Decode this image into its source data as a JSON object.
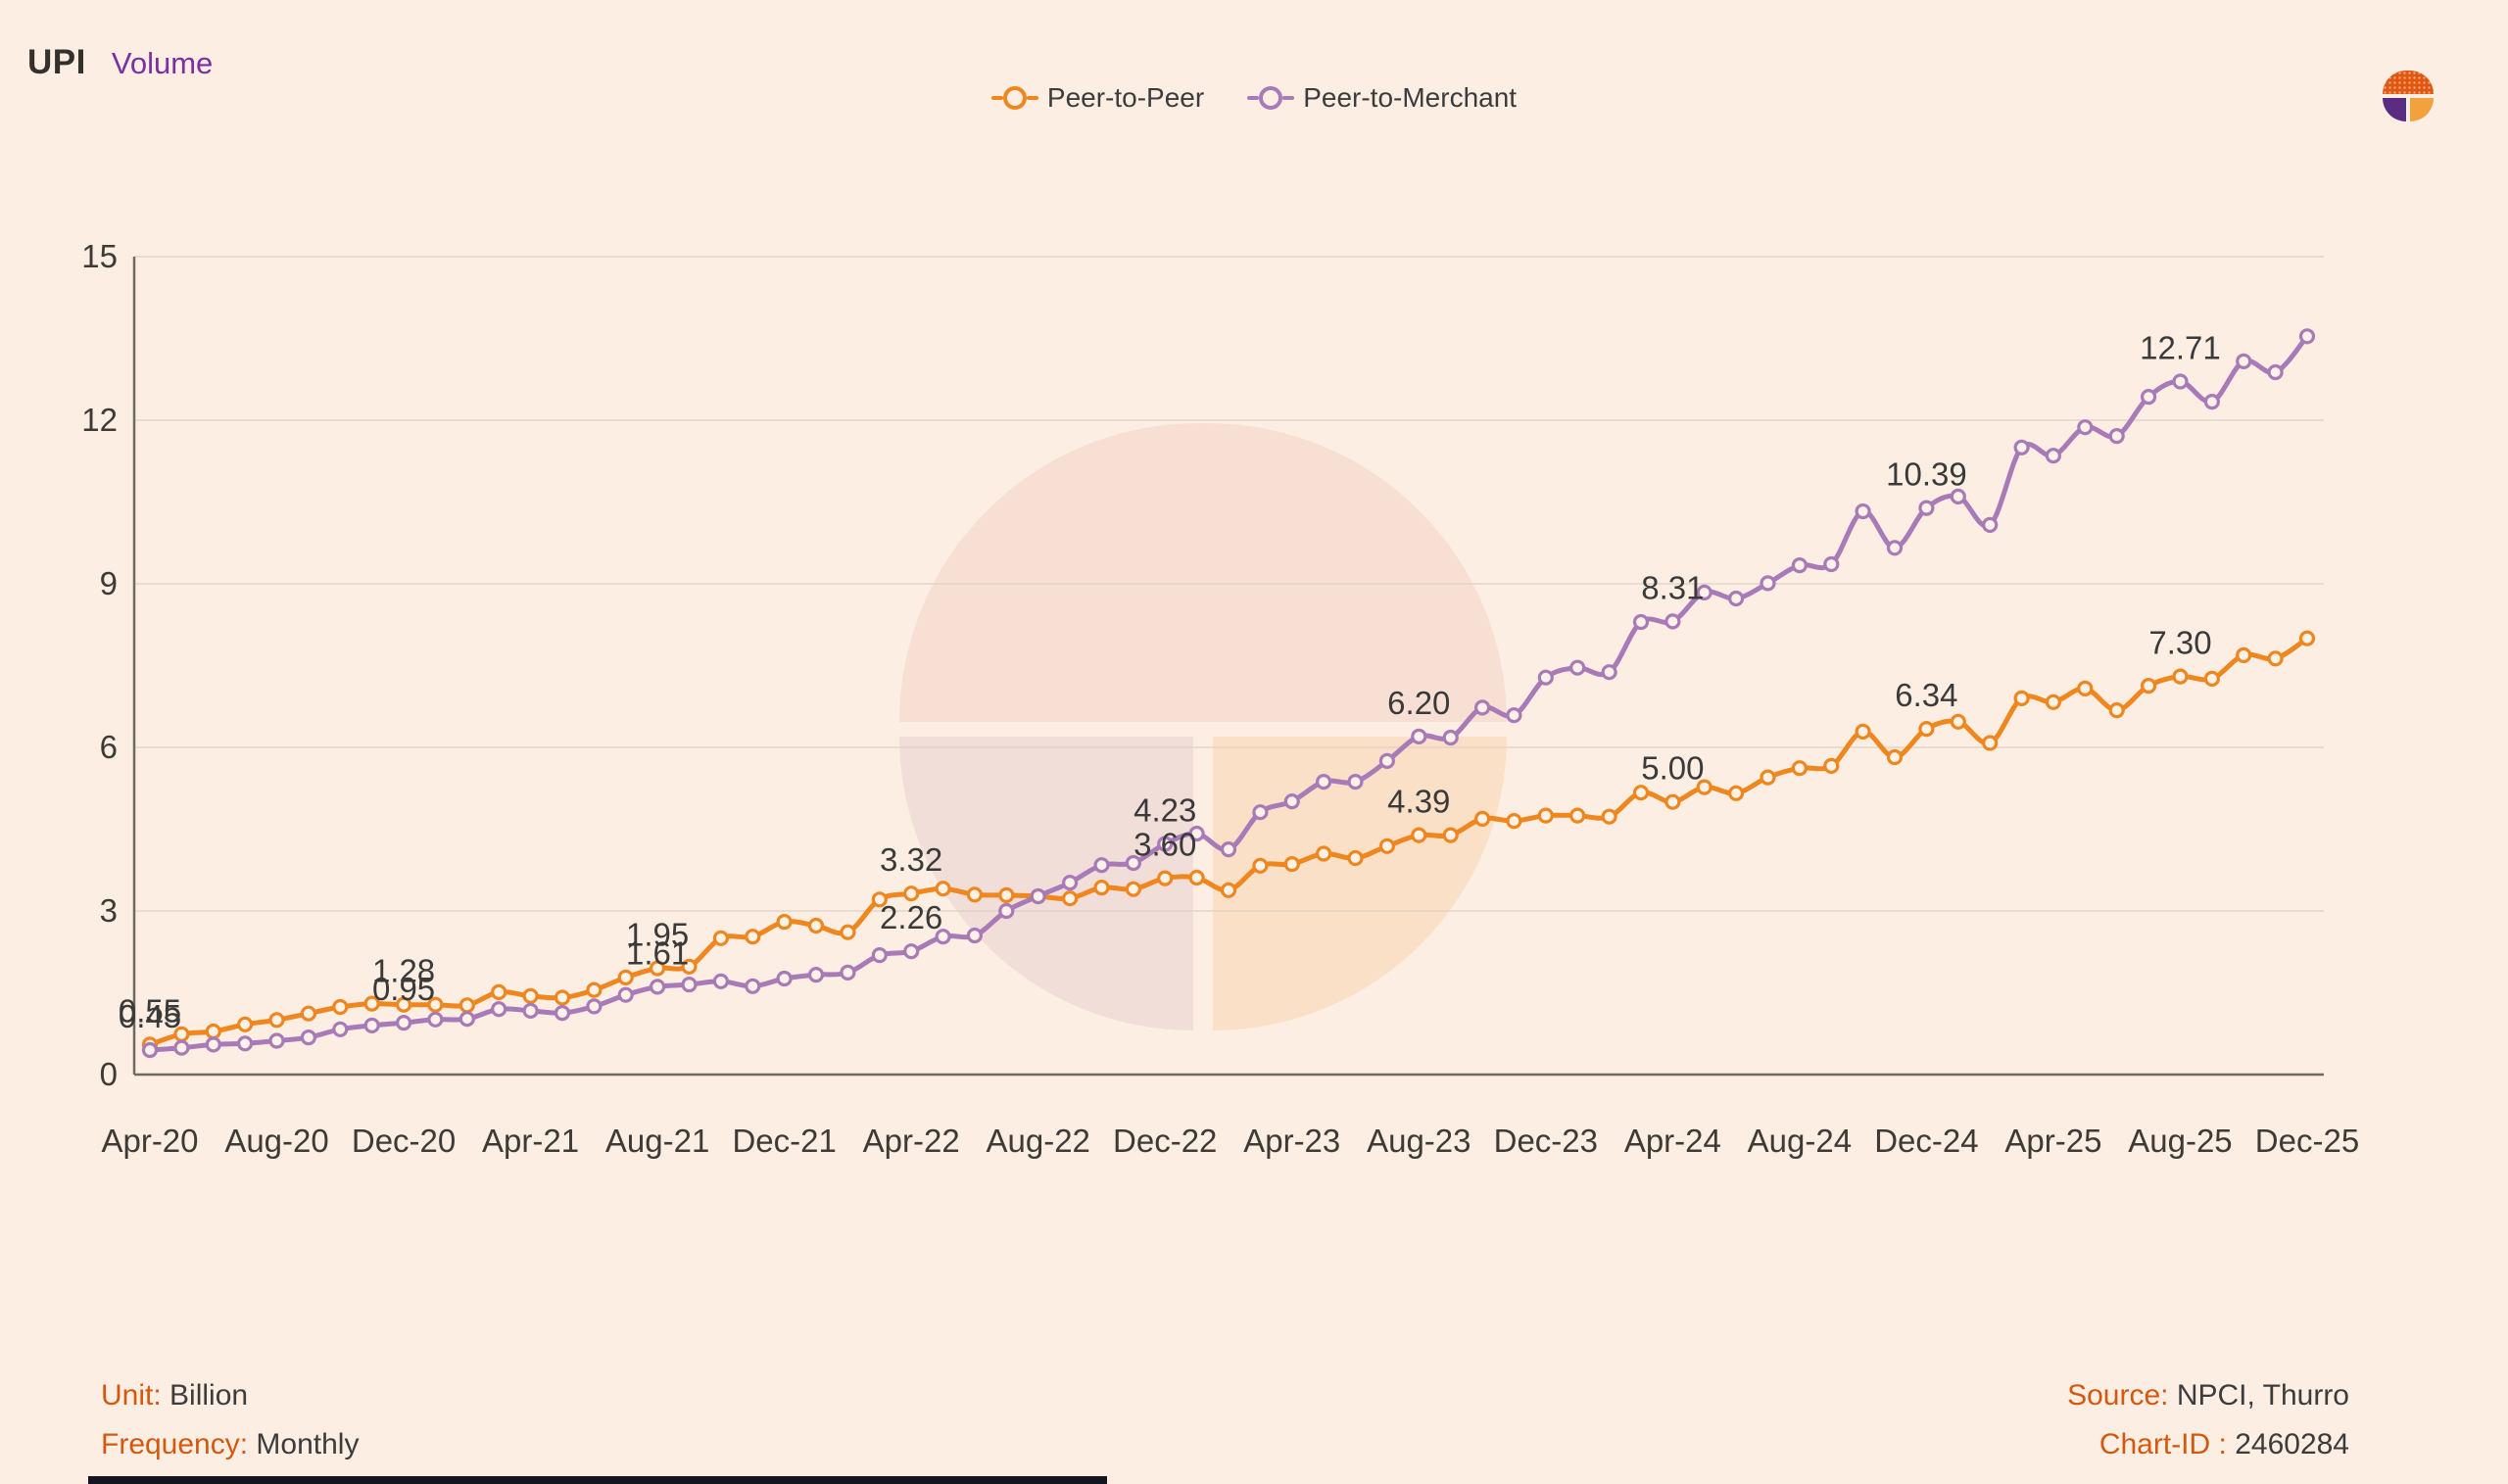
{
  "header": {
    "title": "UPI",
    "subtitle": "Volume"
  },
  "legend": {
    "items": [
      {
        "label": "Peer-to-Peer",
        "color": "#F0861E"
      },
      {
        "label": "Peer-to-Merchant",
        "color": "#A87AB8"
      }
    ]
  },
  "logo": {
    "name": "thurro-logo",
    "colors": {
      "top": "#E2570F",
      "bottom_left": "#5B2D82",
      "bottom_right": "#F2A13F"
    }
  },
  "chart_data": {
    "type": "line",
    "title": "UPI Volume",
    "unit": "Billion",
    "frequency": "Monthly",
    "ylim": [
      0,
      15
    ],
    "yticks": [
      0,
      3,
      6,
      9,
      12,
      15
    ],
    "grid": true,
    "legend_position": "top-center",
    "x_tick_every": 4,
    "x": [
      "Apr-20",
      "May-20",
      "Jun-20",
      "Jul-20",
      "Aug-20",
      "Sep-20",
      "Oct-20",
      "Nov-20",
      "Dec-20",
      "Jan-21",
      "Feb-21",
      "Mar-21",
      "Apr-21",
      "May-21",
      "Jun-21",
      "Jul-21",
      "Aug-21",
      "Sep-21",
      "Oct-21",
      "Nov-21",
      "Dec-21",
      "Jan-22",
      "Feb-22",
      "Mar-22",
      "Apr-22",
      "May-22",
      "Jun-22",
      "Jul-22",
      "Aug-22",
      "Sep-22",
      "Oct-22",
      "Nov-22",
      "Dec-22",
      "Jan-23",
      "Feb-23",
      "Mar-23",
      "Apr-23",
      "May-23",
      "Jun-23",
      "Jul-23",
      "Aug-23",
      "Sep-23",
      "Oct-23",
      "Nov-23",
      "Dec-23",
      "Jan-24",
      "Feb-24",
      "Mar-24",
      "Apr-24",
      "May-24",
      "Jun-24",
      "Jul-24",
      "Aug-24",
      "Sep-24",
      "Oct-24",
      "Nov-24",
      "Dec-24",
      "Jan-25",
      "Feb-25",
      "Mar-25",
      "Apr-25",
      "May-25",
      "Jun-25",
      "Jul-25",
      "Aug-25",
      "Sep-25",
      "Oct-25",
      "Nov-25",
      "Dec-25"
    ],
    "series": [
      {
        "name": "Peer-to-Peer",
        "color": "#F0861E",
        "values": [
          0.55,
          0.74,
          0.79,
          0.92,
          1.0,
          1.12,
          1.24,
          1.3,
          1.28,
          1.28,
          1.27,
          1.51,
          1.44,
          1.41,
          1.55,
          1.78,
          1.95,
          1.98,
          2.5,
          2.53,
          2.8,
          2.73,
          2.61,
          3.21,
          3.32,
          3.41,
          3.3,
          3.29,
          3.27,
          3.23,
          3.43,
          3.4,
          3.6,
          3.61,
          3.38,
          3.83,
          3.86,
          4.05,
          3.97,
          4.19,
          4.39,
          4.39,
          4.69,
          4.65,
          4.75,
          4.75,
          4.73,
          5.17,
          5.0,
          5.27,
          5.16,
          5.45,
          5.62,
          5.66,
          6.29,
          5.82,
          6.34,
          6.47,
          6.08,
          6.9,
          6.83,
          7.08,
          6.68,
          7.13,
          7.3,
          7.26,
          7.69,
          7.63,
          8.0
        ]
      },
      {
        "name": "Peer-to-Merchant",
        "color": "#A87AB8",
        "values": [
          0.45,
          0.49,
          0.55,
          0.57,
          0.62,
          0.68,
          0.83,
          0.9,
          0.95,
          1.01,
          1.02,
          1.2,
          1.17,
          1.13,
          1.25,
          1.46,
          1.61,
          1.65,
          1.71,
          1.62,
          1.76,
          1.83,
          1.87,
          2.19,
          2.26,
          2.53,
          2.55,
          3.0,
          3.27,
          3.52,
          3.84,
          3.88,
          4.23,
          4.42,
          4.13,
          4.81,
          5.01,
          5.37,
          5.37,
          5.75,
          6.2,
          6.18,
          6.73,
          6.59,
          7.28,
          7.46,
          7.38,
          8.3,
          8.31,
          8.84,
          8.73,
          9.01,
          9.34,
          9.36,
          10.33,
          9.66,
          10.39,
          10.6,
          10.08,
          11.5,
          11.35,
          11.87,
          11.71,
          12.43,
          12.71,
          12.34,
          13.08,
          12.88,
          13.54
        ]
      }
    ],
    "annotated_months": [
      "Apr-20",
      "Dec-20",
      "Aug-21",
      "Apr-22",
      "Dec-22",
      "Aug-23",
      "Apr-24",
      "Dec-24",
      "Aug-25"
    ],
    "annotation_labels": {
      "Peer-to-Peer": [
        "0.55",
        "1.28",
        "1.95",
        "3.32",
        "3.60",
        "4.39",
        "5.00",
        "6.34",
        "7.30"
      ],
      "Peer-to-Merchant": [
        "0.45",
        "0.95",
        "1.61",
        "2.26",
        "4.23",
        "6.20",
        "8.31",
        "10.39",
        "12.71"
      ]
    }
  },
  "footer": {
    "unit_label": "Unit:",
    "unit_value": "Billion",
    "frequency_label": "Frequency:",
    "frequency_value": "Monthly",
    "source_label": "Source:",
    "source_value": "NPCI, Thurro",
    "chart_id_label": "Chart-ID :",
    "chart_id_value": "2460284"
  },
  "colors": {
    "background": "#FCEEE2",
    "title": "#34302B",
    "subtitle": "#7B2FA3",
    "p2p_line": "#F0861E",
    "p2m_line": "#A87AB8",
    "grid": "#DCD2C6",
    "axis": "#6F6A63",
    "tick_text": "#3E3A35",
    "annotation_text": "#3A3A3A",
    "footer_key": "#D4590F",
    "marker_fill": "#FDF2E7"
  }
}
